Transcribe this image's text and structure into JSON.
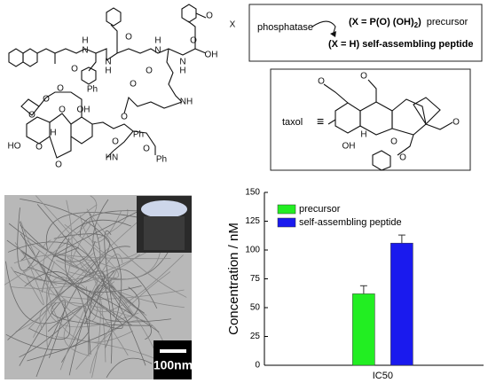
{
  "scheme": {
    "enzyme": "phosphatase",
    "formula_main": "(X = P(O) (OH)",
    "formula_sub": "2",
    "formula_end": ")",
    "precursor_label": "precursor",
    "product": "(X = H) self-assembling peptide",
    "taxol": "taxol",
    "equiv": "≡"
  },
  "structure": {
    "labels": [
      "X",
      "O",
      "H",
      "N",
      "O",
      "N",
      "H",
      "O",
      "H",
      "N",
      "O",
      "N",
      "H",
      "O",
      "OH",
      "NH",
      "O",
      "O",
      "O",
      "O",
      "Ph",
      "O",
      "O",
      "OH",
      "HO",
      "O",
      "H",
      "O",
      "Ph",
      "HN",
      "O",
      "Ph",
      "O",
      "OH",
      "H",
      "O",
      "O",
      "O",
      "O",
      "O"
    ]
  },
  "image": {
    "scale_bar": "100nm"
  },
  "chart_data": {
    "type": "bar",
    "ylabel": "Concentration / nM",
    "categories": [
      "IC50"
    ],
    "series": [
      {
        "name": "precursor",
        "color": "#22ee22",
        "values": [
          62
        ],
        "errors": [
          7
        ]
      },
      {
        "name": "self-assembling peptide",
        "color": "#1a1aee",
        "values": [
          106
        ],
        "errors": [
          7
        ]
      }
    ],
    "ylim": [
      0,
      150
    ],
    "yticks": [
      0,
      25,
      50,
      75,
      100,
      125,
      150
    ],
    "legend": "upper left"
  }
}
